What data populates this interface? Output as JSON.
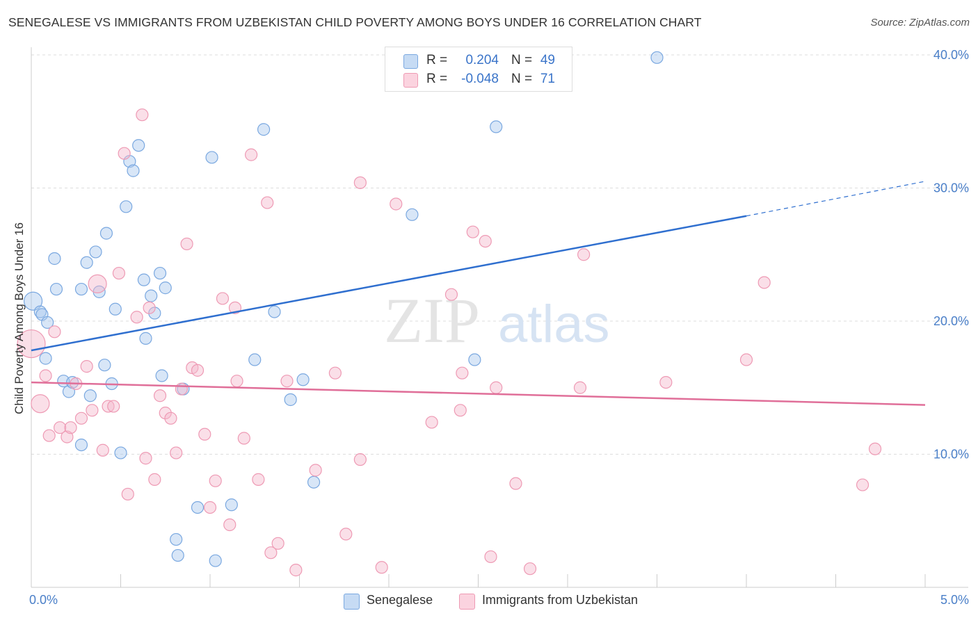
{
  "title": "SENEGALESE VS IMMIGRANTS FROM UZBEKISTAN CHILD POVERTY AMONG BOYS UNDER 16 CORRELATION CHART",
  "source": "Source: ZipAtlas.com",
  "watermark": {
    "zip": "ZIP",
    "atlas": "atlas"
  },
  "legend": {
    "rows": [
      {
        "r_label": "R =",
        "r_value": "0.204",
        "n_label": "N =",
        "n_value": "49",
        "color": "#a8c8ee"
      },
      {
        "r_label": "R =",
        "r_value": "-0.048",
        "n_label": "N =",
        "n_value": "71",
        "color": "#f5b8cb"
      }
    ]
  },
  "bottom_legend": [
    {
      "label": "Senegalese",
      "color": "#a8c8ee"
    },
    {
      "label": "Immigrants from Uzbekistan",
      "color": "#f5b8cb"
    }
  ],
  "chart_data": {
    "type": "scatter",
    "title": "SENEGALESE VS IMMIGRANTS FROM UZBEKISTAN CHILD POVERTY AMONG BOYS UNDER 16 CORRELATION CHART",
    "xlabel": "",
    "ylabel": "Child Poverty Among Boys Under 16",
    "xlim": [
      0,
      5
    ],
    "ylim": [
      0,
      40
    ],
    "x_tick_labels": [
      "0.0%",
      "5.0%"
    ],
    "y_ticks": [
      10,
      20,
      30,
      40
    ],
    "y_tick_labels": [
      "10.0%",
      "20.0%",
      "30.0%",
      "40.0%"
    ],
    "grid": "horizontal dashed",
    "legend_position": "top-center",
    "series": [
      {
        "name": "Senegalese",
        "color": "#7aa8e0",
        "fill": "#a8c8ee",
        "trend_color": "#2f6fcf",
        "trend": {
          "x0": 0.0,
          "y0": 17.8,
          "x1": 4.0,
          "y1": 27.9,
          "dash_to_x": 5.0,
          "dash_to_y": 30.5
        },
        "points": [
          {
            "x": 0.01,
            "y": 21.5,
            "s": 2
          },
          {
            "x": 0.05,
            "y": 20.7,
            "s": 1
          },
          {
            "x": 0.06,
            "y": 20.5,
            "s": 1
          },
          {
            "x": 0.09,
            "y": 19.9,
            "s": 1
          },
          {
            "x": 0.14,
            "y": 22.4,
            "s": 1
          },
          {
            "x": 0.13,
            "y": 24.7,
            "s": 1
          },
          {
            "x": 0.08,
            "y": 17.2,
            "s": 1
          },
          {
            "x": 0.18,
            "y": 15.5,
            "s": 1
          },
          {
            "x": 0.21,
            "y": 14.7,
            "s": 1
          },
          {
            "x": 0.23,
            "y": 15.4,
            "s": 1
          },
          {
            "x": 0.28,
            "y": 22.4,
            "s": 1
          },
          {
            "x": 0.31,
            "y": 24.4,
            "s": 1
          },
          {
            "x": 0.36,
            "y": 25.2,
            "s": 1
          },
          {
            "x": 0.38,
            "y": 22.2,
            "s": 1
          },
          {
            "x": 0.42,
            "y": 26.6,
            "s": 1
          },
          {
            "x": 0.47,
            "y": 20.9,
            "s": 1
          },
          {
            "x": 0.41,
            "y": 16.7,
            "s": 1
          },
          {
            "x": 0.45,
            "y": 15.3,
            "s": 1
          },
          {
            "x": 0.33,
            "y": 14.4,
            "s": 1
          },
          {
            "x": 0.28,
            "y": 10.7,
            "s": 1
          },
          {
            "x": 0.5,
            "y": 10.1,
            "s": 1
          },
          {
            "x": 0.53,
            "y": 28.6,
            "s": 1
          },
          {
            "x": 0.55,
            "y": 32.0,
            "s": 1
          },
          {
            "x": 0.57,
            "y": 31.3,
            "s": 1
          },
          {
            "x": 0.6,
            "y": 33.2,
            "s": 1
          },
          {
            "x": 0.63,
            "y": 23.1,
            "s": 1
          },
          {
            "x": 0.67,
            "y": 21.9,
            "s": 1
          },
          {
            "x": 0.69,
            "y": 20.6,
            "s": 1
          },
          {
            "x": 0.72,
            "y": 23.6,
            "s": 1
          },
          {
            "x": 0.75,
            "y": 22.5,
            "s": 1
          },
          {
            "x": 0.64,
            "y": 18.7,
            "s": 1
          },
          {
            "x": 0.73,
            "y": 15.9,
            "s": 1
          },
          {
            "x": 0.85,
            "y": 14.9,
            "s": 1
          },
          {
            "x": 0.81,
            "y": 3.6,
            "s": 1
          },
          {
            "x": 0.82,
            "y": 2.4,
            "s": 1
          },
          {
            "x": 0.93,
            "y": 6.0,
            "s": 1
          },
          {
            "x": 1.01,
            "y": 32.3,
            "s": 1
          },
          {
            "x": 1.03,
            "y": 2.0,
            "s": 1
          },
          {
            "x": 1.12,
            "y": 6.2,
            "s": 1
          },
          {
            "x": 1.25,
            "y": 17.1,
            "s": 1
          },
          {
            "x": 1.3,
            "y": 34.4,
            "s": 1
          },
          {
            "x": 1.36,
            "y": 20.7,
            "s": 1
          },
          {
            "x": 1.45,
            "y": 14.1,
            "s": 1
          },
          {
            "x": 1.52,
            "y": 15.6,
            "s": 1
          },
          {
            "x": 1.58,
            "y": 7.9,
            "s": 1
          },
          {
            "x": 2.13,
            "y": 28.0,
            "s": 1
          },
          {
            "x": 2.48,
            "y": 17.1,
            "s": 1
          },
          {
            "x": 2.6,
            "y": 34.6,
            "s": 1
          },
          {
            "x": 3.5,
            "y": 39.8,
            "s": 1
          }
        ]
      },
      {
        "name": "Immigrants from Uzbekistan",
        "color": "#ee9ab4",
        "fill": "#f5b8cb",
        "trend_color": "#e06f99",
        "trend": {
          "x0": 0.0,
          "y0": 15.4,
          "x1": 5.0,
          "y1": 13.7
        },
        "points": [
          {
            "x": 0.0,
            "y": 18.3,
            "s": 3
          },
          {
            "x": 0.05,
            "y": 13.8,
            "s": 2
          },
          {
            "x": 0.08,
            "y": 15.9,
            "s": 1
          },
          {
            "x": 0.1,
            "y": 11.4,
            "s": 1
          },
          {
            "x": 0.13,
            "y": 19.2,
            "s": 1
          },
          {
            "x": 0.16,
            "y": 12.0,
            "s": 1
          },
          {
            "x": 0.2,
            "y": 11.3,
            "s": 1
          },
          {
            "x": 0.22,
            "y": 12.0,
            "s": 1
          },
          {
            "x": 0.25,
            "y": 15.3,
            "s": 1
          },
          {
            "x": 0.28,
            "y": 12.7,
            "s": 1
          },
          {
            "x": 0.31,
            "y": 16.6,
            "s": 1
          },
          {
            "x": 0.34,
            "y": 13.3,
            "s": 1
          },
          {
            "x": 0.37,
            "y": 22.8,
            "s": 2
          },
          {
            "x": 0.4,
            "y": 10.3,
            "s": 1
          },
          {
            "x": 0.43,
            "y": 13.6,
            "s": 1
          },
          {
            "x": 0.46,
            "y": 13.6,
            "s": 1
          },
          {
            "x": 0.49,
            "y": 23.6,
            "s": 1
          },
          {
            "x": 0.52,
            "y": 32.6,
            "s": 1
          },
          {
            "x": 0.54,
            "y": 7.0,
            "s": 1
          },
          {
            "x": 0.59,
            "y": 20.3,
            "s": 1
          },
          {
            "x": 0.62,
            "y": 35.5,
            "s": 1
          },
          {
            "x": 0.64,
            "y": 9.7,
            "s": 1
          },
          {
            "x": 0.66,
            "y": 21.0,
            "s": 1
          },
          {
            "x": 0.69,
            "y": 8.1,
            "s": 1
          },
          {
            "x": 0.72,
            "y": 14.4,
            "s": 1
          },
          {
            "x": 0.75,
            "y": 13.1,
            "s": 1
          },
          {
            "x": 0.78,
            "y": 12.7,
            "s": 1
          },
          {
            "x": 0.81,
            "y": 10.1,
            "s": 1
          },
          {
            "x": 0.84,
            "y": 14.9,
            "s": 1
          },
          {
            "x": 0.87,
            "y": 25.8,
            "s": 1
          },
          {
            "x": 0.9,
            "y": 16.5,
            "s": 1
          },
          {
            "x": 0.93,
            "y": 16.3,
            "s": 1
          },
          {
            "x": 0.97,
            "y": 11.5,
            "s": 1
          },
          {
            "x": 1.0,
            "y": 6.0,
            "s": 1
          },
          {
            "x": 1.03,
            "y": 8.0,
            "s": 1
          },
          {
            "x": 1.07,
            "y": 21.7,
            "s": 1
          },
          {
            "x": 1.11,
            "y": 4.7,
            "s": 1
          },
          {
            "x": 1.14,
            "y": 21.0,
            "s": 1
          },
          {
            "x": 1.15,
            "y": 15.5,
            "s": 1
          },
          {
            "x": 1.19,
            "y": 11.2,
            "s": 1
          },
          {
            "x": 1.23,
            "y": 32.5,
            "s": 1
          },
          {
            "x": 1.27,
            "y": 8.1,
            "s": 1
          },
          {
            "x": 1.32,
            "y": 28.9,
            "s": 1
          },
          {
            "x": 1.34,
            "y": 2.6,
            "s": 1
          },
          {
            "x": 1.38,
            "y": 3.3,
            "s": 1
          },
          {
            "x": 1.43,
            "y": 15.5,
            "s": 1
          },
          {
            "x": 1.48,
            "y": 1.3,
            "s": 1
          },
          {
            "x": 1.59,
            "y": 8.8,
            "s": 1
          },
          {
            "x": 1.7,
            "y": 16.1,
            "s": 1
          },
          {
            "x": 1.76,
            "y": 4.0,
            "s": 1
          },
          {
            "x": 1.84,
            "y": 9.6,
            "s": 1
          },
          {
            "x": 1.84,
            "y": 30.4,
            "s": 1
          },
          {
            "x": 1.96,
            "y": 1.5,
            "s": 1
          },
          {
            "x": 2.04,
            "y": 28.8,
            "s": 1
          },
          {
            "x": 2.24,
            "y": 12.4,
            "s": 1
          },
          {
            "x": 2.35,
            "y": 22.0,
            "s": 1
          },
          {
            "x": 2.4,
            "y": 13.3,
            "s": 1
          },
          {
            "x": 2.41,
            "y": 16.1,
            "s": 1
          },
          {
            "x": 2.47,
            "y": 26.7,
            "s": 1
          },
          {
            "x": 2.54,
            "y": 26.0,
            "s": 1
          },
          {
            "x": 2.57,
            "y": 2.3,
            "s": 1
          },
          {
            "x": 2.6,
            "y": 15.0,
            "s": 1
          },
          {
            "x": 2.71,
            "y": 7.8,
            "s": 1
          },
          {
            "x": 2.79,
            "y": 1.4,
            "s": 1
          },
          {
            "x": 3.07,
            "y": 15.0,
            "s": 1
          },
          {
            "x": 3.09,
            "y": 25.0,
            "s": 1
          },
          {
            "x": 3.55,
            "y": 15.4,
            "s": 1
          },
          {
            "x": 4.0,
            "y": 17.1,
            "s": 1
          },
          {
            "x": 4.1,
            "y": 22.9,
            "s": 1
          },
          {
            "x": 4.65,
            "y": 7.7,
            "s": 1
          },
          {
            "x": 4.72,
            "y": 10.4,
            "s": 1
          }
        ]
      }
    ]
  }
}
